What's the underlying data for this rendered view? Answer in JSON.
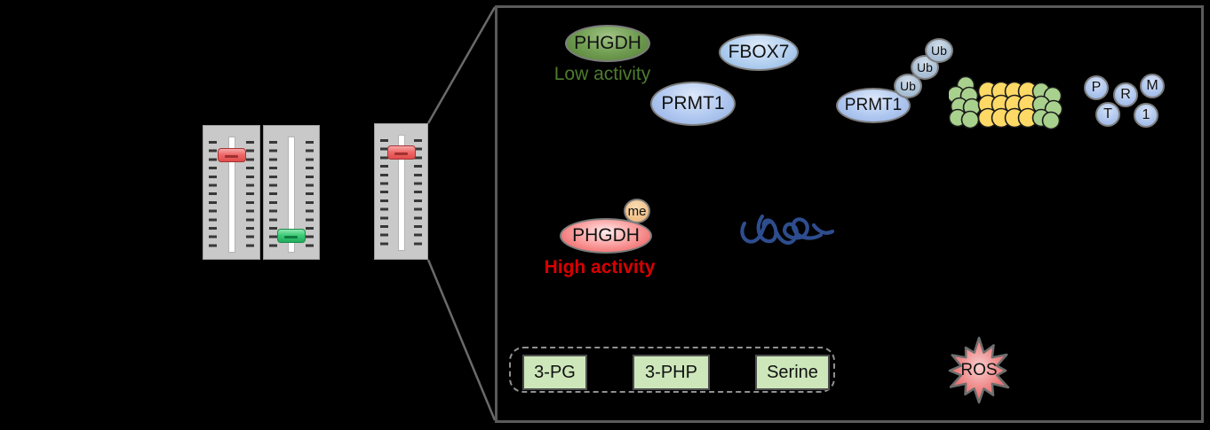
{
  "figure": {
    "background_color": "#000000",
    "panel_border_color": "#5a5a5a",
    "connector_color": "#6a6a6a"
  },
  "faders": {
    "red_handle_color": "#ee6a6a",
    "green_handle_color": "#3ecb78",
    "items": [
      {
        "name": "fader-1",
        "handle": "red",
        "level": "high"
      },
      {
        "name": "fader-2",
        "handle": "green",
        "level": "low"
      },
      {
        "name": "fader-3",
        "handle": "red",
        "level": "high",
        "magnified": true
      }
    ]
  },
  "molecules": {
    "phgdh_low": {
      "label": "PHGDH",
      "activity": "Low activity",
      "fill": "#719e52",
      "activity_color": "#4e7b2e"
    },
    "fbox7": {
      "label": "FBOX7",
      "fill": "#b3d0f0"
    },
    "prmt1": {
      "label": "PRMT1",
      "fill": "#b0c8f0"
    },
    "prmt1_ubiquitinated": {
      "label": "PRMT1",
      "fill": "#b0c8f0"
    },
    "ub_chain": [
      {
        "label": "Ub"
      },
      {
        "label": "Ub"
      },
      {
        "label": "Ub"
      }
    ],
    "fragments": [
      {
        "label": "P"
      },
      {
        "label": "R"
      },
      {
        "label": "M"
      },
      {
        "label": "T"
      },
      {
        "label": "1"
      }
    ],
    "methyl": {
      "label": "me",
      "fill": "#f1c48e"
    },
    "phgdh_high": {
      "label": "PHGDH",
      "activity": "High activity",
      "fill": "#f07070",
      "activity_color": "#d90000"
    },
    "ros": {
      "label": "ROS",
      "fill": "#ec6b6b"
    }
  },
  "proteasome": {
    "cap_color": "#a9d18e",
    "core_color": "#ffd966"
  },
  "mrna": {
    "color": "#2e4d8e"
  },
  "pathway": {
    "box_fill": "#cde7ba",
    "metabolites": [
      {
        "label": "3-PG"
      },
      {
        "label": "3-PHP"
      },
      {
        "label": "Serine"
      }
    ]
  }
}
